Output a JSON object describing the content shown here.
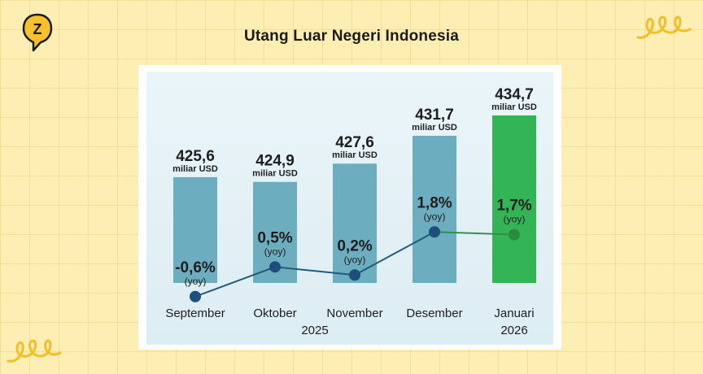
{
  "page": {
    "title": "Utang Luar Negeri Indonesia",
    "logo_letter": "Z"
  },
  "colors": {
    "background": "#fdeeb3",
    "bar_default": "#6dadc0",
    "bar_highlight": "#33b457",
    "line_default": "#235a7a",
    "line_highlight": "#2f8f45",
    "point_default": "#1d4f7a",
    "point_highlight": "#2a8a3f",
    "logo_yellow": "#f7c12b"
  },
  "chart_data": {
    "type": "bar",
    "title": "",
    "xlabel": "",
    "ylabel": "",
    "unit": "miliar USD",
    "categories": [
      "September",
      "Oktober",
      "November",
      "Desember",
      "Januari"
    ],
    "year_labels": [
      {
        "text": "2025",
        "categories": [
          "September",
          "Oktober",
          "November",
          "Desember"
        ]
      },
      {
        "text": "2026",
        "categories": [
          "Januari"
        ]
      }
    ],
    "series": [
      {
        "type": "bar",
        "values": [
          425.6,
          424.9,
          427.6,
          431.7,
          434.7
        ],
        "labels": [
          "425,6",
          "424,9",
          "427,6",
          "431,7",
          "434,7"
        ],
        "highlight_index": 4
      },
      {
        "type": "line",
        "values": [
          -0.6,
          0.5,
          0.2,
          1.8,
          1.7
        ],
        "labels": [
          "-0,6%",
          "0,5%",
          "0,2%",
          "1,8%",
          "1,7%"
        ],
        "sublabel": "(yoy)",
        "highlight_index": 4
      }
    ],
    "ylim_growth": [
      -1.0,
      2.2
    ],
    "grid": false,
    "legend": "none"
  }
}
